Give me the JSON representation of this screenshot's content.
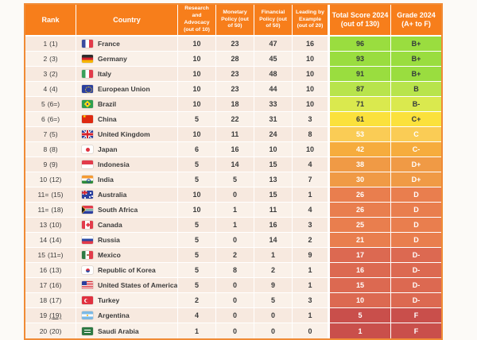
{
  "colors": {
    "header_bg": "#F77E1B",
    "outer_border": "#F08B36",
    "row_odd": "#F7E9DF",
    "row_even": "#FAF1E9",
    "tier_green": "#9ADD3F",
    "tier_green_light": "#B8E44C",
    "tier_yellow_green": "#DAE94E",
    "tier_yellow": "#FBE13C",
    "tier_amber": "#FACC55",
    "tier_orange_light": "#F6AC3D",
    "tier_orange": "#F09A45",
    "tier_orange_deep": "#E97E4E",
    "tier_salmon": "#DC6951",
    "tier_red": "#C94F4B"
  },
  "table": {
    "header": {
      "rank": "Rank",
      "country": "Country",
      "research": "Research and Advocacy (out of 10)",
      "monetary": "Monetary Policy (out of 50)",
      "financial": "Financial Policy (out of 50)",
      "leading": "Leading by Example (out of 20)",
      "total_l1": "Total Score 2024",
      "total_l2": "(out of 130)",
      "grade_l1": "Grade 2024",
      "grade_l2": "(A+ to F)"
    }
  },
  "rows": [
    {
      "rank": "1",
      "prev": "(1)",
      "country": "France",
      "flag": "fr",
      "research": "10",
      "monetary": "23",
      "financial": "47",
      "leading": "16",
      "total": "96",
      "grade": "B+",
      "color": "#9ADD3F",
      "text": "dark"
    },
    {
      "rank": "2",
      "prev": "(3)",
      "country": "Germany",
      "flag": "de",
      "research": "10",
      "monetary": "28",
      "financial": "45",
      "leading": "10",
      "total": "93",
      "grade": "B+",
      "color": "#9ADD3F",
      "text": "dark"
    },
    {
      "rank": "3",
      "prev": "(2)",
      "country": "Italy",
      "flag": "it",
      "research": "10",
      "monetary": "23",
      "financial": "48",
      "leading": "10",
      "total": "91",
      "grade": "B+",
      "color": "#9ADD3F",
      "text": "dark"
    },
    {
      "rank": "4",
      "prev": "(4)",
      "country": "European Union",
      "flag": "eu",
      "research": "10",
      "monetary": "23",
      "financial": "44",
      "leading": "10",
      "total": "87",
      "grade": "B",
      "color": "#B8E44C",
      "text": "dark"
    },
    {
      "rank": "5",
      "prev": "(6=)",
      "country": "Brazil",
      "flag": "br",
      "research": "10",
      "monetary": "18",
      "financial": "33",
      "leading": "10",
      "total": "71",
      "grade": "B-",
      "color": "#DAE94E",
      "text": "dark"
    },
    {
      "rank": "6",
      "prev": "(6=)",
      "country": "China",
      "flag": "cn",
      "research": "5",
      "monetary": "22",
      "financial": "31",
      "leading": "3",
      "total": "61",
      "grade": "C+",
      "color": "#FBE13C",
      "text": "dark"
    },
    {
      "rank": "7",
      "prev": "(5)",
      "country": "United Kingdom",
      "flag": "gb",
      "research": "10",
      "monetary": "11",
      "financial": "24",
      "leading": "8",
      "total": "53",
      "grade": "C",
      "color": "#FACC55",
      "text": "light"
    },
    {
      "rank": "8",
      "prev": "(8)",
      "country": "Japan",
      "flag": "jp",
      "research": "6",
      "monetary": "16",
      "financial": "10",
      "leading": "10",
      "total": "42",
      "grade": "C-",
      "color": "#F6AC3D",
      "text": "light"
    },
    {
      "rank": "9",
      "prev": "(9)",
      "country": "Indonesia",
      "flag": "id",
      "research": "5",
      "monetary": "14",
      "financial": "15",
      "leading": "4",
      "total": "38",
      "grade": "D+",
      "color": "#F09A45",
      "text": "light"
    },
    {
      "rank": "10",
      "prev": "(12)",
      "country": "India",
      "flag": "in",
      "research": "5",
      "monetary": "5",
      "financial": "13",
      "leading": "7",
      "total": "30",
      "grade": "D+",
      "color": "#F09A45",
      "text": "light"
    },
    {
      "rank": "11=",
      "prev": "(15)",
      "country": "Australia",
      "flag": "au",
      "research": "10",
      "monetary": "0",
      "financial": "15",
      "leading": "1",
      "total": "26",
      "grade": "D",
      "color": "#E97E4E",
      "text": "light"
    },
    {
      "rank": "11=",
      "prev": "(18)",
      "country": "South Africa",
      "flag": "za",
      "research": "10",
      "monetary": "1",
      "financial": "11",
      "leading": "4",
      "total": "26",
      "grade": "D",
      "color": "#E97E4E",
      "text": "light"
    },
    {
      "rank": "13",
      "prev": "(10)",
      "country": "Canada",
      "flag": "ca",
      "research": "5",
      "monetary": "1",
      "financial": "16",
      "leading": "3",
      "total": "25",
      "grade": "D",
      "color": "#E97E4E",
      "text": "light"
    },
    {
      "rank": "14",
      "prev": "(14)",
      "country": "Russia",
      "flag": "ru",
      "research": "5",
      "monetary": "0",
      "financial": "14",
      "leading": "2",
      "total": "21",
      "grade": "D",
      "color": "#E97E4E",
      "text": "light"
    },
    {
      "rank": "15",
      "prev": "(11=)",
      "country": "Mexico",
      "flag": "mx",
      "research": "5",
      "monetary": "2",
      "financial": "1",
      "leading": "9",
      "total": "17",
      "grade": "D-",
      "color": "#DC6951",
      "text": "light"
    },
    {
      "rank": "16",
      "prev": "(13)",
      "country": "Republic of Korea",
      "flag": "kr",
      "research": "5",
      "monetary": "8",
      "financial": "2",
      "leading": "1",
      "total": "16",
      "grade": "D-",
      "color": "#DC6951",
      "text": "light"
    },
    {
      "rank": "17",
      "prev": "(16)",
      "country": "United States of America",
      "flag": "us",
      "research": "5",
      "monetary": "0",
      "financial": "9",
      "leading": "1",
      "total": "15",
      "grade": "D-",
      "color": "#DC6951",
      "text": "light"
    },
    {
      "rank": "18",
      "prev": "(17)",
      "country": "Turkey",
      "flag": "tr",
      "research": "2",
      "monetary": "0",
      "financial": "5",
      "leading": "3",
      "total": "10",
      "grade": "D-",
      "color": "#DC6951",
      "text": "light"
    },
    {
      "rank": "19",
      "prev": "(19)",
      "country": "Argentina",
      "flag": "ar",
      "research": "4",
      "monetary": "0",
      "financial": "0",
      "leading": "1",
      "total": "5",
      "grade": "F",
      "color": "#C94F4B",
      "text": "light",
      "underline": true
    },
    {
      "rank": "20",
      "prev": "(20)",
      "country": "Saudi Arabia",
      "flag": "sa",
      "research": "1",
      "monetary": "0",
      "financial": "0",
      "leading": "0",
      "total": "1",
      "grade": "F",
      "color": "#C94F4B",
      "text": "light"
    }
  ],
  "chart_data": {
    "type": "table",
    "columns": [
      "Rank",
      "Country",
      "Research and Advocacy (out of 10)",
      "Monetary Policy (out of 50)",
      "Financial Policy (out of 50)",
      "Leading by Example (out of 20)",
      "Total Score 2024 (out of 130)",
      "Grade 2024 (A+ to F)"
    ],
    "rows": [
      [
        "1 (1)",
        "France",
        10,
        23,
        47,
        16,
        96,
        "B+"
      ],
      [
        "2 (3)",
        "Germany",
        10,
        28,
        45,
        10,
        93,
        "B+"
      ],
      [
        "3 (2)",
        "Italy",
        10,
        23,
        48,
        10,
        91,
        "B+"
      ],
      [
        "4 (4)",
        "European Union",
        10,
        23,
        44,
        10,
        87,
        "B"
      ],
      [
        "5 (6=)",
        "Brazil",
        10,
        18,
        33,
        10,
        71,
        "B-"
      ],
      [
        "6 (6=)",
        "China",
        5,
        22,
        31,
        3,
        61,
        "C+"
      ],
      [
        "7 (5)",
        "United Kingdom",
        10,
        11,
        24,
        8,
        53,
        "C"
      ],
      [
        "8 (8)",
        "Japan",
        6,
        16,
        10,
        10,
        42,
        "C-"
      ],
      [
        "9 (9)",
        "Indonesia",
        5,
        14,
        15,
        4,
        38,
        "D+"
      ],
      [
        "10 (12)",
        "India",
        5,
        5,
        13,
        7,
        30,
        "D+"
      ],
      [
        "11= (15)",
        "Australia",
        10,
        0,
        15,
        1,
        26,
        "D"
      ],
      [
        "11= (18)",
        "South Africa",
        10,
        1,
        11,
        4,
        26,
        "D"
      ],
      [
        "13 (10)",
        "Canada",
        5,
        1,
        16,
        3,
        25,
        "D"
      ],
      [
        "14 (14)",
        "Russia",
        5,
        0,
        14,
        2,
        21,
        "D"
      ],
      [
        "15 (11=)",
        "Mexico",
        5,
        2,
        1,
        9,
        17,
        "D-"
      ],
      [
        "16 (13)",
        "Republic of Korea",
        5,
        8,
        2,
        1,
        16,
        "D-"
      ],
      [
        "17 (16)",
        "United States of America",
        5,
        0,
        9,
        1,
        15,
        "D-"
      ],
      [
        "18 (17)",
        "Turkey",
        2,
        0,
        5,
        3,
        10,
        "D-"
      ],
      [
        "19 (19)",
        "Argentina",
        4,
        0,
        0,
        1,
        5,
        "F"
      ],
      [
        "20 (20)",
        "Saudi Arabia",
        1,
        0,
        0,
        0,
        1,
        "F"
      ]
    ],
    "legend_note": "Total Score and Grade cells are heat-colored from green (high) to red (low)"
  }
}
